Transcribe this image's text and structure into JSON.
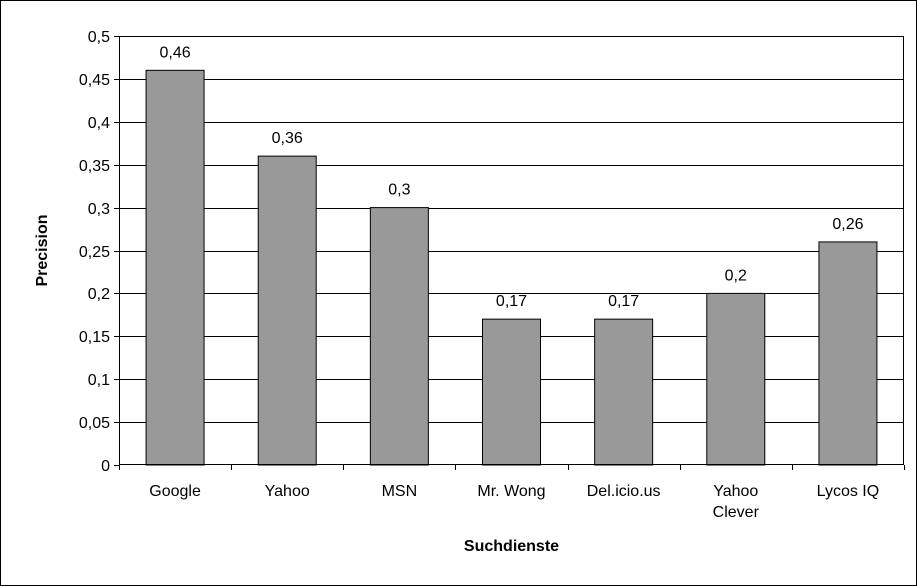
{
  "chart_data": {
    "type": "bar",
    "categories": [
      "Google",
      "Yahoo",
      "MSN",
      "Mr. Wong",
      "Del.icio.us",
      "Yahoo Clever",
      "Lycos IQ"
    ],
    "category_lines": [
      [
        "Google"
      ],
      [
        "Yahoo"
      ],
      [
        "MSN"
      ],
      [
        "Mr. Wong"
      ],
      [
        "Del.icio.us"
      ],
      [
        "Yahoo",
        "Clever"
      ],
      [
        "Lycos IQ"
      ]
    ],
    "values": [
      0.46,
      0.36,
      0.3,
      0.17,
      0.17,
      0.2,
      0.26
    ],
    "data_labels": [
      "0,46",
      "0,36",
      "0,3",
      "0,17",
      "0,17",
      "0,2",
      "0,26"
    ],
    "yticks": [
      0,
      0.05,
      0.1,
      0.15,
      0.2,
      0.25,
      0.3,
      0.35,
      0.4,
      0.45,
      0.5
    ],
    "ytick_labels": [
      "0",
      "0,05",
      "0,1",
      "0,15",
      "0,2",
      "0,25",
      "0,3",
      "0,35",
      "0,4",
      "0,45",
      "0,5"
    ],
    "ylim": [
      0,
      0.5
    ],
    "xlabel": "Suchdienste",
    "ylabel": "Precision",
    "grid": true,
    "legend": "none",
    "colors": {
      "bar": "#999999",
      "bar_stroke": "#000000",
      "grid": "#000000",
      "background": "#ffffff"
    }
  }
}
